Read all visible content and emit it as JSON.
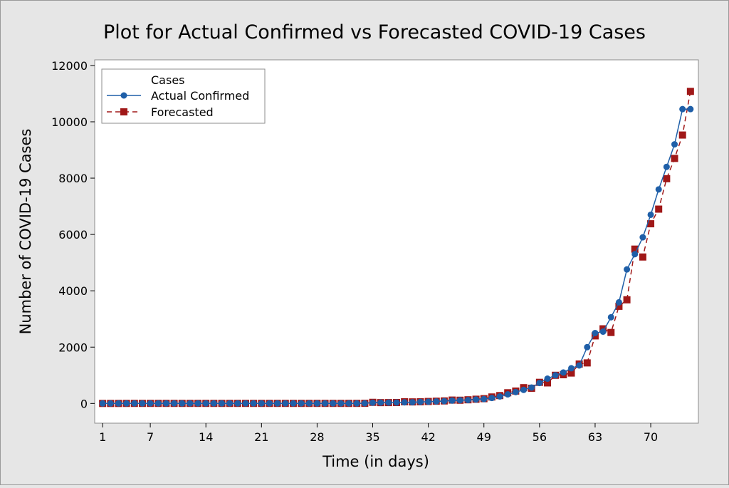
{
  "chart_data": {
    "type": "line",
    "title": "Plot for Actual Confirmed vs Forecasted COVID-19 Cases",
    "xlabel": "Time (in days)",
    "ylabel": "Number of COVID-19 Cases",
    "xlim": [
      0,
      76
    ],
    "ylim": [
      -700,
      12200
    ],
    "x_ticks": [
      1,
      7,
      14,
      21,
      28,
      35,
      42,
      49,
      56,
      63,
      70
    ],
    "y_ticks": [
      0,
      2000,
      4000,
      6000,
      8000,
      10000,
      12000
    ],
    "grid": false,
    "legend": {
      "title": "Cases",
      "position": "top-left",
      "entries": [
        "Actual Confirmed",
        "Forecasted"
      ]
    },
    "x": [
      1,
      2,
      3,
      4,
      5,
      6,
      7,
      8,
      9,
      10,
      11,
      12,
      13,
      14,
      15,
      16,
      17,
      18,
      19,
      20,
      21,
      22,
      23,
      24,
      25,
      26,
      27,
      28,
      29,
      30,
      31,
      32,
      33,
      34,
      35,
      36,
      37,
      38,
      39,
      40,
      41,
      42,
      43,
      44,
      45,
      46,
      47,
      48,
      49,
      50,
      51,
      52,
      53,
      54,
      55,
      56,
      57,
      58,
      59,
      60,
      61,
      62,
      63,
      64,
      65,
      66,
      67,
      68,
      69,
      70,
      71,
      72,
      73,
      74,
      75
    ],
    "series": [
      {
        "name": "Actual Confirmed",
        "color": "#1f5fa8",
        "marker": "circle",
        "line_style": "solid",
        "values": [
          1,
          1,
          1,
          2,
          3,
          3,
          3,
          3,
          3,
          3,
          3,
          3,
          3,
          3,
          3,
          3,
          3,
          3,
          3,
          3,
          3,
          3,
          3,
          3,
          3,
          3,
          3,
          3,
          3,
          3,
          3,
          3,
          3,
          5,
          28,
          30,
          31,
          34,
          39,
          43,
          56,
          62,
          73,
          82,
          102,
          113,
          119,
          142,
          156,
          194,
          250,
          323,
          404,
          482,
          566,
          727,
          880,
          1000,
          1100,
          1250,
          1350,
          2000,
          2500,
          2550,
          3060,
          3590,
          4760,
          5300,
          5900,
          6700,
          7600,
          8400,
          9200,
          10450,
          10450
        ]
      },
      {
        "name": "Forecasted",
        "color": "#a01818",
        "marker": "square",
        "line_style": "dashed",
        "values": [
          1,
          1,
          1,
          2,
          3,
          3,
          3,
          3,
          3,
          3,
          3,
          3,
          3,
          3,
          3,
          3,
          3,
          3,
          3,
          3,
          3,
          3,
          3,
          3,
          3,
          3,
          3,
          3,
          3,
          3,
          3,
          3,
          3,
          5,
          40,
          30,
          31,
          34,
          60,
          55,
          60,
          70,
          80,
          90,
          120,
          115,
          130,
          150,
          170,
          230,
          280,
          380,
          440,
          560,
          540,
          750,
          730,
          1000,
          1020,
          1080,
          1400,
          1440,
          2400,
          2650,
          2520,
          3450,
          3680,
          5480,
          5200,
          6380,
          6900,
          7980,
          8700,
          9530,
          11080
        ]
      }
    ]
  }
}
